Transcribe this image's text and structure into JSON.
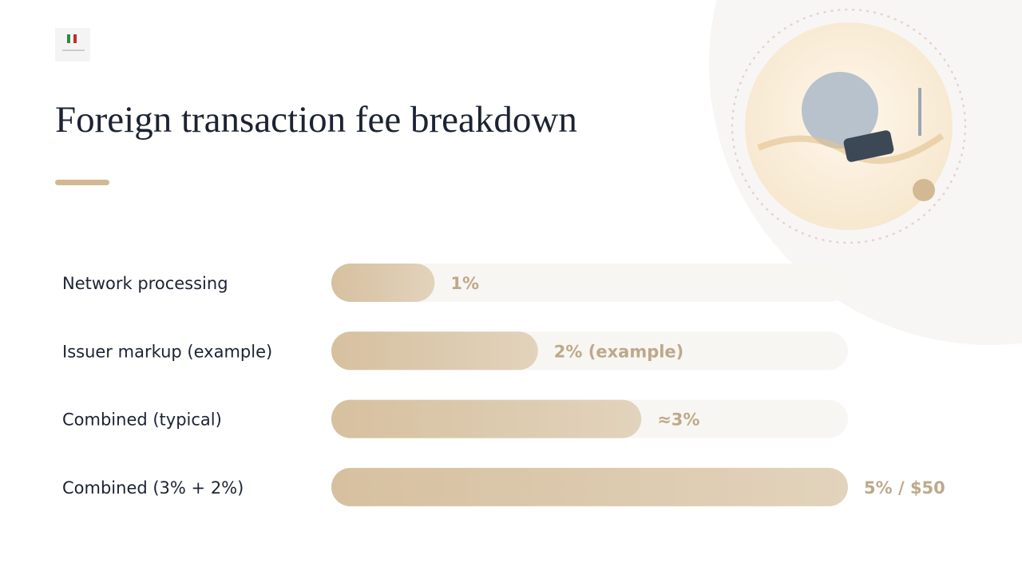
{
  "chart_data": {
    "type": "bar",
    "orientation": "horizontal",
    "title": "Foreign transaction fee breakdown",
    "categories": [
      "Network processing",
      "Issuer markup (example)",
      "Combined (typical)",
      "Combined (3% + 2%)"
    ],
    "values": [
      1,
      2,
      3,
      5
    ],
    "value_labels": [
      "1%",
      "2% (example)",
      "≈3%",
      "5% / $50"
    ],
    "xlim": [
      0,
      5
    ],
    "color": "#d6c09f"
  }
}
